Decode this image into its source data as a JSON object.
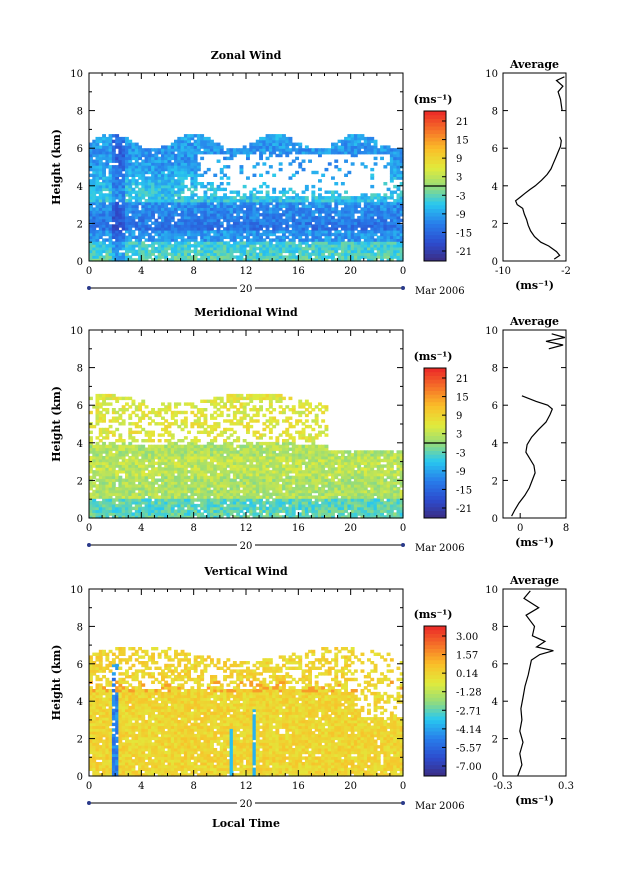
{
  "chart_data": [
    {
      "type": "heatmap",
      "title": "Zonal Wind",
      "xlabel": "",
      "ylabel": "Height (km)",
      "xlim": [
        0,
        24
      ],
      "ylim": [
        0,
        10
      ],
      "xticks": [
        "0",
        "4",
        "8",
        "12",
        "16",
        "20",
        "0"
      ],
      "yticks": [
        "0",
        "2",
        "4",
        "6",
        "8",
        "10"
      ],
      "date_label": "20",
      "date_suffix": "Mar 2006",
      "colorbar": {
        "unit": "(ms⁻¹)",
        "ticks": [
          "21",
          "15",
          "9",
          "3",
          "-3",
          "-9",
          "-15",
          "-21"
        ],
        "range": [
          -24,
          24
        ],
        "zero_line": 0
      },
      "profile": {
        "title": "Average",
        "xlim": [
          -10,
          -2
        ],
        "xticks": [
          "-10",
          "-2"
        ],
        "xlabel": "(ms⁻¹)",
        "ylim": [
          0,
          10
        ],
        "yticks": [
          "0",
          "2",
          "4",
          "6",
          "8",
          "10"
        ],
        "points": [
          [
            -3.5,
            0.1
          ],
          [
            -2.8,
            0.3
          ],
          [
            -3.2,
            0.5
          ],
          [
            -4.2,
            0.8
          ],
          [
            -5.2,
            1.0
          ],
          [
            -6.0,
            1.3
          ],
          [
            -6.5,
            1.6
          ],
          [
            -6.8,
            1.9
          ],
          [
            -7.0,
            2.2
          ],
          [
            -7.3,
            2.5
          ],
          [
            -7.5,
            2.8
          ],
          [
            -8.2,
            3.0
          ],
          [
            -8.4,
            3.2
          ],
          [
            -7.8,
            3.4
          ],
          [
            -7.2,
            3.6
          ],
          [
            -6.6,
            3.8
          ],
          [
            -5.9,
            4.0
          ],
          [
            -5.1,
            4.3
          ],
          [
            -4.4,
            4.6
          ],
          [
            -3.9,
            4.9
          ],
          [
            -3.6,
            5.2
          ],
          [
            -3.3,
            5.5
          ],
          [
            -3.0,
            5.8
          ],
          [
            -2.7,
            6.1
          ],
          [
            -2.6,
            6.4
          ],
          [
            -2.8,
            6.6
          ]
        ],
        "points_upper": [
          [
            -2.5,
            8.0
          ],
          [
            -2.7,
            8.6
          ],
          [
            -3.0,
            9.0
          ],
          [
            -2.4,
            9.3
          ],
          [
            -3.2,
            9.6
          ],
          [
            -2.2,
            9.8
          ]
        ],
        "zero_x": null
      }
    },
    {
      "type": "heatmap",
      "title": "Meridional Wind",
      "xlabel": "",
      "ylabel": "Height (km)",
      "xlim": [
        0,
        24
      ],
      "ylim": [
        0,
        10
      ],
      "xticks": [
        "0",
        "4",
        "8",
        "12",
        "16",
        "20",
        "0"
      ],
      "yticks": [
        "0",
        "2",
        "4",
        "6",
        "8",
        "10"
      ],
      "date_label": "20",
      "date_suffix": "Mar 2006",
      "colorbar": {
        "unit": "(ms⁻¹)",
        "ticks": [
          "21",
          "15",
          "9",
          "3",
          "-3",
          "-9",
          "-15",
          "-21"
        ],
        "range": [
          -24,
          24
        ],
        "zero_line": 0
      },
      "profile": {
        "title": "Average",
        "xlim": [
          -3,
          8
        ],
        "xticks": [
          "0",
          "8"
        ],
        "xlabel": "(ms⁻¹)",
        "ylim": [
          0,
          10
        ],
        "yticks": [
          "0",
          "2",
          "4",
          "6",
          "8",
          "10"
        ],
        "points": [
          [
            -1.5,
            0.1
          ],
          [
            -1.0,
            0.4
          ],
          [
            -0.2,
            0.8
          ],
          [
            0.8,
            1.2
          ],
          [
            1.6,
            1.6
          ],
          [
            2.1,
            2.0
          ],
          [
            2.6,
            2.4
          ],
          [
            2.4,
            2.8
          ],
          [
            1.6,
            3.2
          ],
          [
            1.0,
            3.5
          ],
          [
            1.2,
            3.9
          ],
          [
            2.0,
            4.3
          ],
          [
            3.2,
            4.7
          ],
          [
            4.5,
            5.1
          ],
          [
            5.2,
            5.5
          ],
          [
            5.6,
            5.8
          ],
          [
            4.8,
            6.0
          ],
          [
            2.8,
            6.2
          ],
          [
            0.3,
            6.5
          ]
        ],
        "points_upper": [
          [
            5.0,
            9.0
          ],
          [
            7.5,
            9.2
          ],
          [
            4.5,
            9.4
          ],
          [
            7.8,
            9.6
          ],
          [
            5.5,
            9.8
          ]
        ],
        "zero_x": 0
      }
    },
    {
      "type": "heatmap",
      "title": "Vertical Wind",
      "xlabel": "Local Time",
      "ylabel": "Height (km)",
      "xlim": [
        0,
        24
      ],
      "ylim": [
        0,
        10
      ],
      "xticks": [
        "0",
        "4",
        "8",
        "12",
        "16",
        "20",
        "0"
      ],
      "yticks": [
        "0",
        "2",
        "4",
        "6",
        "8",
        "10"
      ],
      "date_label": "20",
      "date_suffix": "Mar 2006",
      "colorbar": {
        "unit": "(ms⁻¹)",
        "ticks": [
          "3.00",
          "1.57",
          "0.14",
          "-1.28",
          "-2.71",
          "-4.14",
          "-5.57",
          "-7.00"
        ],
        "range": [
          -7.7,
          3.7
        ],
        "zero_line": null
      },
      "profile": {
        "title": "Average",
        "xlim": [
          -0.3,
          0.3
        ],
        "xticks": [
          "-0.3",
          "0.3"
        ],
        "xlabel": "(ms⁻¹)",
        "ylim": [
          0,
          10
        ],
        "yticks": [
          "0",
          "2",
          "4",
          "6",
          "8",
          "10"
        ],
        "points": [
          [
            -0.16,
            0.0
          ],
          [
            -0.12,
            0.6
          ],
          [
            -0.14,
            1.2
          ],
          [
            -0.11,
            1.8
          ],
          [
            -0.14,
            2.4
          ],
          [
            -0.12,
            3.0
          ],
          [
            -0.13,
            3.6
          ],
          [
            -0.11,
            4.2
          ],
          [
            -0.09,
            4.8
          ],
          [
            -0.06,
            5.4
          ],
          [
            -0.03,
            6.2
          ],
          [
            0.05,
            6.5
          ],
          [
            0.18,
            6.7
          ],
          [
            0.02,
            6.9
          ],
          [
            0.1,
            7.2
          ],
          [
            -0.02,
            7.5
          ],
          [
            0.0,
            8.0
          ],
          [
            -0.08,
            8.6
          ],
          [
            0.04,
            9.0
          ],
          [
            -0.1,
            9.5
          ],
          [
            -0.04,
            9.9
          ]
        ],
        "points_upper": [],
        "zero_x": null
      }
    }
  ]
}
